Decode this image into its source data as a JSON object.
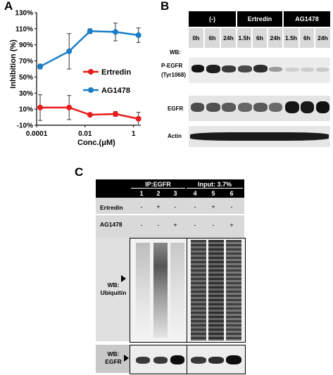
{
  "panel_a": {
    "letter": "A",
    "chart_data": {
      "type": "line",
      "ylabel": "Inhibition (%)",
      "xlabel": "Conc.(μM)",
      "x_scale": "log",
      "xlim": [
        0.0001,
        2
      ],
      "ylim": [
        -10,
        130
      ],
      "y_ticks": [
        "-10%",
        "10%",
        "30%",
        "50%",
        "70%",
        "90%",
        "110%",
        "130%"
      ],
      "x_ticks": [
        "0.0001",
        "0.01",
        "1"
      ],
      "legend_position": "center-right",
      "series": [
        {
          "name": "Ertredin",
          "color": "#e81c1c",
          "x": [
            0.00014,
            0.0022,
            0.016,
            0.18,
            1.6
          ],
          "y": [
            12,
            12,
            3,
            4,
            -2
          ],
          "err": [
            16,
            15,
            2,
            3,
            8
          ]
        },
        {
          "name": "AG1478",
          "color": "#1a7dc8",
          "x": [
            0.00014,
            0.0022,
            0.016,
            0.18,
            1.6
          ],
          "y": [
            63,
            82,
            107,
            106,
            102
          ],
          "err": [
            3,
            22,
            3,
            11,
            9
          ]
        }
      ]
    }
  },
  "panel_b": {
    "letter": "B",
    "groups": [
      "(-)",
      "Ertredin",
      "AG1478"
    ],
    "times": [
      "0h",
      "6h",
      "24h",
      "1.5h",
      "6h",
      "24h",
      "1.5h",
      "6h",
      "24h"
    ],
    "wb_label": "WB:",
    "rows": [
      "P-EGFR\n(Tyr1068)",
      "EGFR",
      "Actin"
    ]
  },
  "panel_c": {
    "letter": "C",
    "headers": [
      "IP:EGFR",
      "Input: 3.7%"
    ],
    "lanes": [
      "1",
      "2",
      "3",
      "4",
      "5",
      "6"
    ],
    "treatments": [
      {
        "label": "Ertredin",
        "values": [
          "-",
          "+",
          "-",
          "-",
          "+",
          "-"
        ]
      },
      {
        "label": "AG1478",
        "values": [
          "-",
          "-",
          "+",
          "-",
          "-",
          "+"
        ]
      }
    ],
    "blot_ub_label": "WB:\nUbiquitin",
    "blot_egfr_label": "WB:\nEGFR"
  }
}
